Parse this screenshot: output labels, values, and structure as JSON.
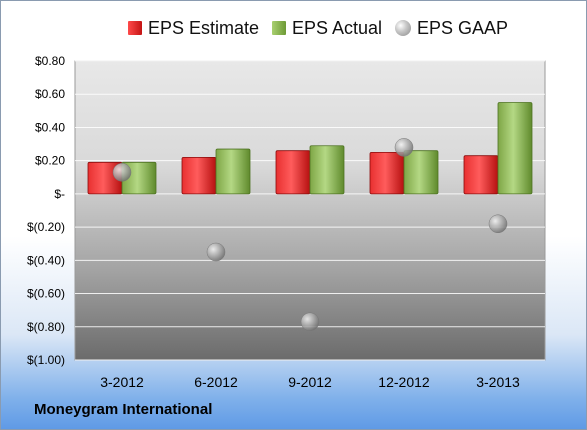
{
  "legend": {
    "estimate": "EPS Estimate",
    "actual": "EPS Actual",
    "gaap": "EPS GAAP"
  },
  "footer": {
    "company": "Moneygram International"
  },
  "colors": {
    "estimate": "#d42020",
    "actual": "#8cb454",
    "gaap": "#a9a9a9",
    "plot_light": "#e6e6e6",
    "plot_dark": "#6e6e6e"
  },
  "chart_data": {
    "type": "bar",
    "categories": [
      "3-2012",
      "6-2012",
      "9-2012",
      "12-2012",
      "3-2013"
    ],
    "series": [
      {
        "name": "EPS Estimate",
        "values": [
          0.19,
          0.22,
          0.26,
          0.25,
          0.23
        ]
      },
      {
        "name": "EPS Actual",
        "values": [
          0.19,
          0.27,
          0.29,
          0.26,
          0.55
        ]
      },
      {
        "name": "EPS GAAP",
        "values": [
          0.13,
          -0.35,
          -0.77,
          0.28,
          -0.18
        ]
      }
    ],
    "ylim": [
      -1.0,
      0.8
    ],
    "ytick_values": [
      0.8,
      0.6,
      0.4,
      0.2,
      0,
      -0.2,
      -0.4,
      -0.6,
      -0.8,
      -1.0
    ],
    "ytick_labels": [
      "$0.80",
      "$0.60",
      "$0.40",
      "$0.20",
      "$-",
      "$(0.20)",
      "$(0.40)",
      "$(0.60)",
      "$(0.80)",
      "$(1.00)"
    ],
    "legend_position": "top",
    "grid": true
  }
}
